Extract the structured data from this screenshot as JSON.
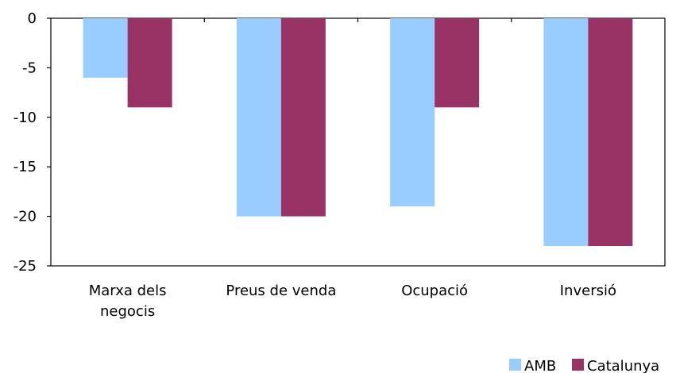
{
  "chart_data": {
    "type": "bar",
    "title": "",
    "xlabel": "",
    "ylabel": "",
    "categories": [
      [
        "Marxa dels",
        "negocis"
      ],
      [
        "Preus de venda"
      ],
      [
        "Ocupació"
      ],
      [
        "Inversió"
      ]
    ],
    "series": [
      {
        "name": "AMB",
        "color": "#99CCFF",
        "values": [
          -6,
          -20,
          -19,
          -23
        ]
      },
      {
        "name": "Catalunya",
        "color": "#993366",
        "values": [
          -9,
          -20,
          -9,
          -23
        ]
      }
    ],
    "ylim": [
      -25,
      0
    ],
    "yticks": [
      0,
      -5,
      -10,
      -15,
      -20,
      -25
    ],
    "grid": false,
    "legend_position": "bottom-right"
  }
}
